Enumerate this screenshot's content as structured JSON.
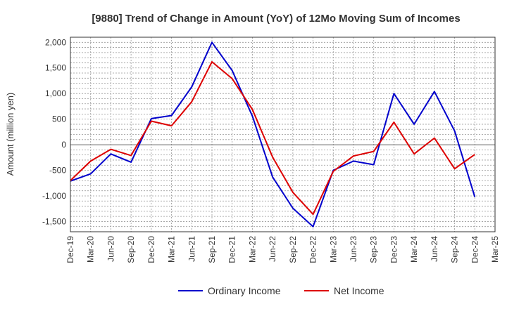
{
  "chart_data": {
    "type": "line",
    "title": "[9880]  Trend of Change in Amount (YoY) of 12Mo Moving Sum of Incomes",
    "xlabel": "",
    "ylabel": "Amount (million yen)",
    "ylim": [
      -1700,
      2100
    ],
    "yticks": [
      2000,
      1500,
      1000,
      500,
      0,
      -500,
      -1000,
      -1500
    ],
    "ytick_labels": [
      "2,000",
      "1,500",
      "1,000",
      "500",
      "0",
      "-500",
      "-1,000",
      "-1,500"
    ],
    "categories": [
      "Dec-19",
      "Mar-20",
      "Jun-20",
      "Sep-20",
      "Dec-20",
      "Mar-21",
      "Jun-21",
      "Sep-21",
      "Dec-21",
      "Mar-22",
      "Jun-22",
      "Sep-22",
      "Dec-22",
      "Mar-23",
      "Jun-23",
      "Sep-23",
      "Dec-23",
      "Mar-24",
      "Jun-24",
      "Sep-24",
      "Dec-24",
      "Mar-25"
    ],
    "grid": true,
    "legend_position": "bottom-center",
    "series": [
      {
        "name": "Ordinary Income",
        "color": "#0000cc",
        "values": [
          -710,
          -570,
          -180,
          -340,
          510,
          570,
          1130,
          2000,
          1450,
          560,
          -630,
          -1240,
          -1600,
          -500,
          -320,
          -390,
          1000,
          400,
          1040,
          270,
          -1020,
          null
        ]
      },
      {
        "name": "Net Income",
        "color": "#dd0000",
        "values": [
          -700,
          -320,
          -90,
          -210,
          460,
          370,
          840,
          1620,
          1290,
          690,
          -240,
          -930,
          -1360,
          -520,
          -220,
          -130,
          440,
          -180,
          130,
          -470,
          -190,
          null
        ]
      }
    ]
  }
}
